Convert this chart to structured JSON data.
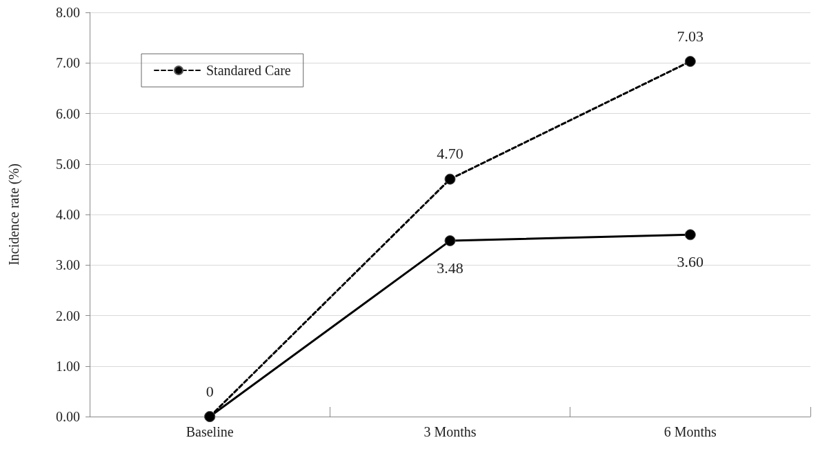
{
  "chart_data": {
    "type": "line",
    "ylabel": "Incidence rate (%)",
    "categories": [
      "Baseline",
      "3 Months",
      "6 Months"
    ],
    "series": [
      {
        "color": "#000000",
        "values": [
          0,
          3.48,
          3.6
        ],
        "line_style": "solid",
        "value_labels": [
          null,
          "3.48",
          "3.60"
        ]
      },
      {
        "name": "Standared Care",
        "color": "#000000",
        "values": [
          0,
          4.7,
          7.03
        ],
        "line_style": "dashed",
        "value_labels": [
          "0",
          "4.70",
          "7.03"
        ]
      }
    ],
    "ylim": [
      0,
      8
    ],
    "yticks": [
      {
        "value": 0,
        "label": "0.00"
      },
      {
        "value": 1,
        "label": "1.00"
      },
      {
        "value": 2,
        "label": "2.00"
      },
      {
        "value": 3,
        "label": "3.00"
      },
      {
        "value": 4,
        "label": "4.00"
      },
      {
        "value": 5,
        "label": "5.00"
      },
      {
        "value": 6,
        "label": "6.00"
      },
      {
        "value": 7,
        "label": "7.00"
      },
      {
        "value": 8,
        "label": "8.00"
      }
    ],
    "grid": "y",
    "legend": "top left",
    "marker": "circle"
  }
}
